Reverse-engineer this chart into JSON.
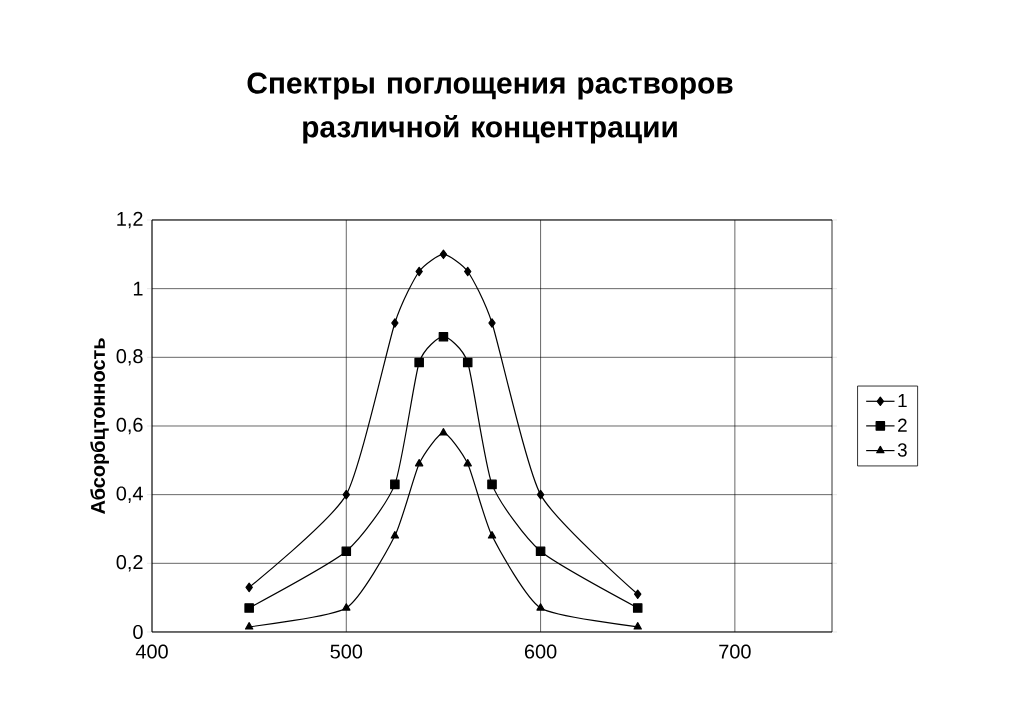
{
  "chart_data": {
    "type": "line",
    "title": "Спектры поглощения растворов различной концентрации",
    "ylabel": "Абсорбцтонность",
    "x": [
      450,
      500,
      525,
      537.5,
      550,
      562.5,
      575,
      600,
      650
    ],
    "series": [
      {
        "name": "1",
        "color": "#000000",
        "marker": "diamond",
        "values": [
          0.13,
          0.4,
          0.9,
          1.05,
          1.1,
          1.05,
          0.9,
          0.4,
          0.11
        ]
      },
      {
        "name": "2",
        "color": "#000000",
        "marker": "square",
        "values": [
          0.07,
          0.235,
          0.43,
          0.785,
          0.86,
          0.785,
          0.43,
          0.235,
          0.07
        ]
      },
      {
        "name": "3",
        "color": "#000000",
        "marker": "triangle",
        "values": [
          0.015,
          0.07,
          0.28,
          0.49,
          0.58,
          0.49,
          0.28,
          0.07,
          0.015
        ]
      }
    ],
    "xlim": [
      400,
      750
    ],
    "xticks": [
      400,
      500,
      600,
      700
    ],
    "ylim": [
      0,
      1.2
    ],
    "yticks": [
      0,
      {
        "value": 0.2,
        "label": "0,2"
      },
      {
        "value": 0.4,
        "label": "0,4"
      },
      {
        "value": 0.6,
        "label": "0,6"
      },
      {
        "value": 0.8,
        "label": "0,8"
      },
      1,
      {
        "value": 1.2,
        "label": "1,2"
      }
    ],
    "grid": true,
    "legend": "right",
    "line_style": "solid"
  }
}
